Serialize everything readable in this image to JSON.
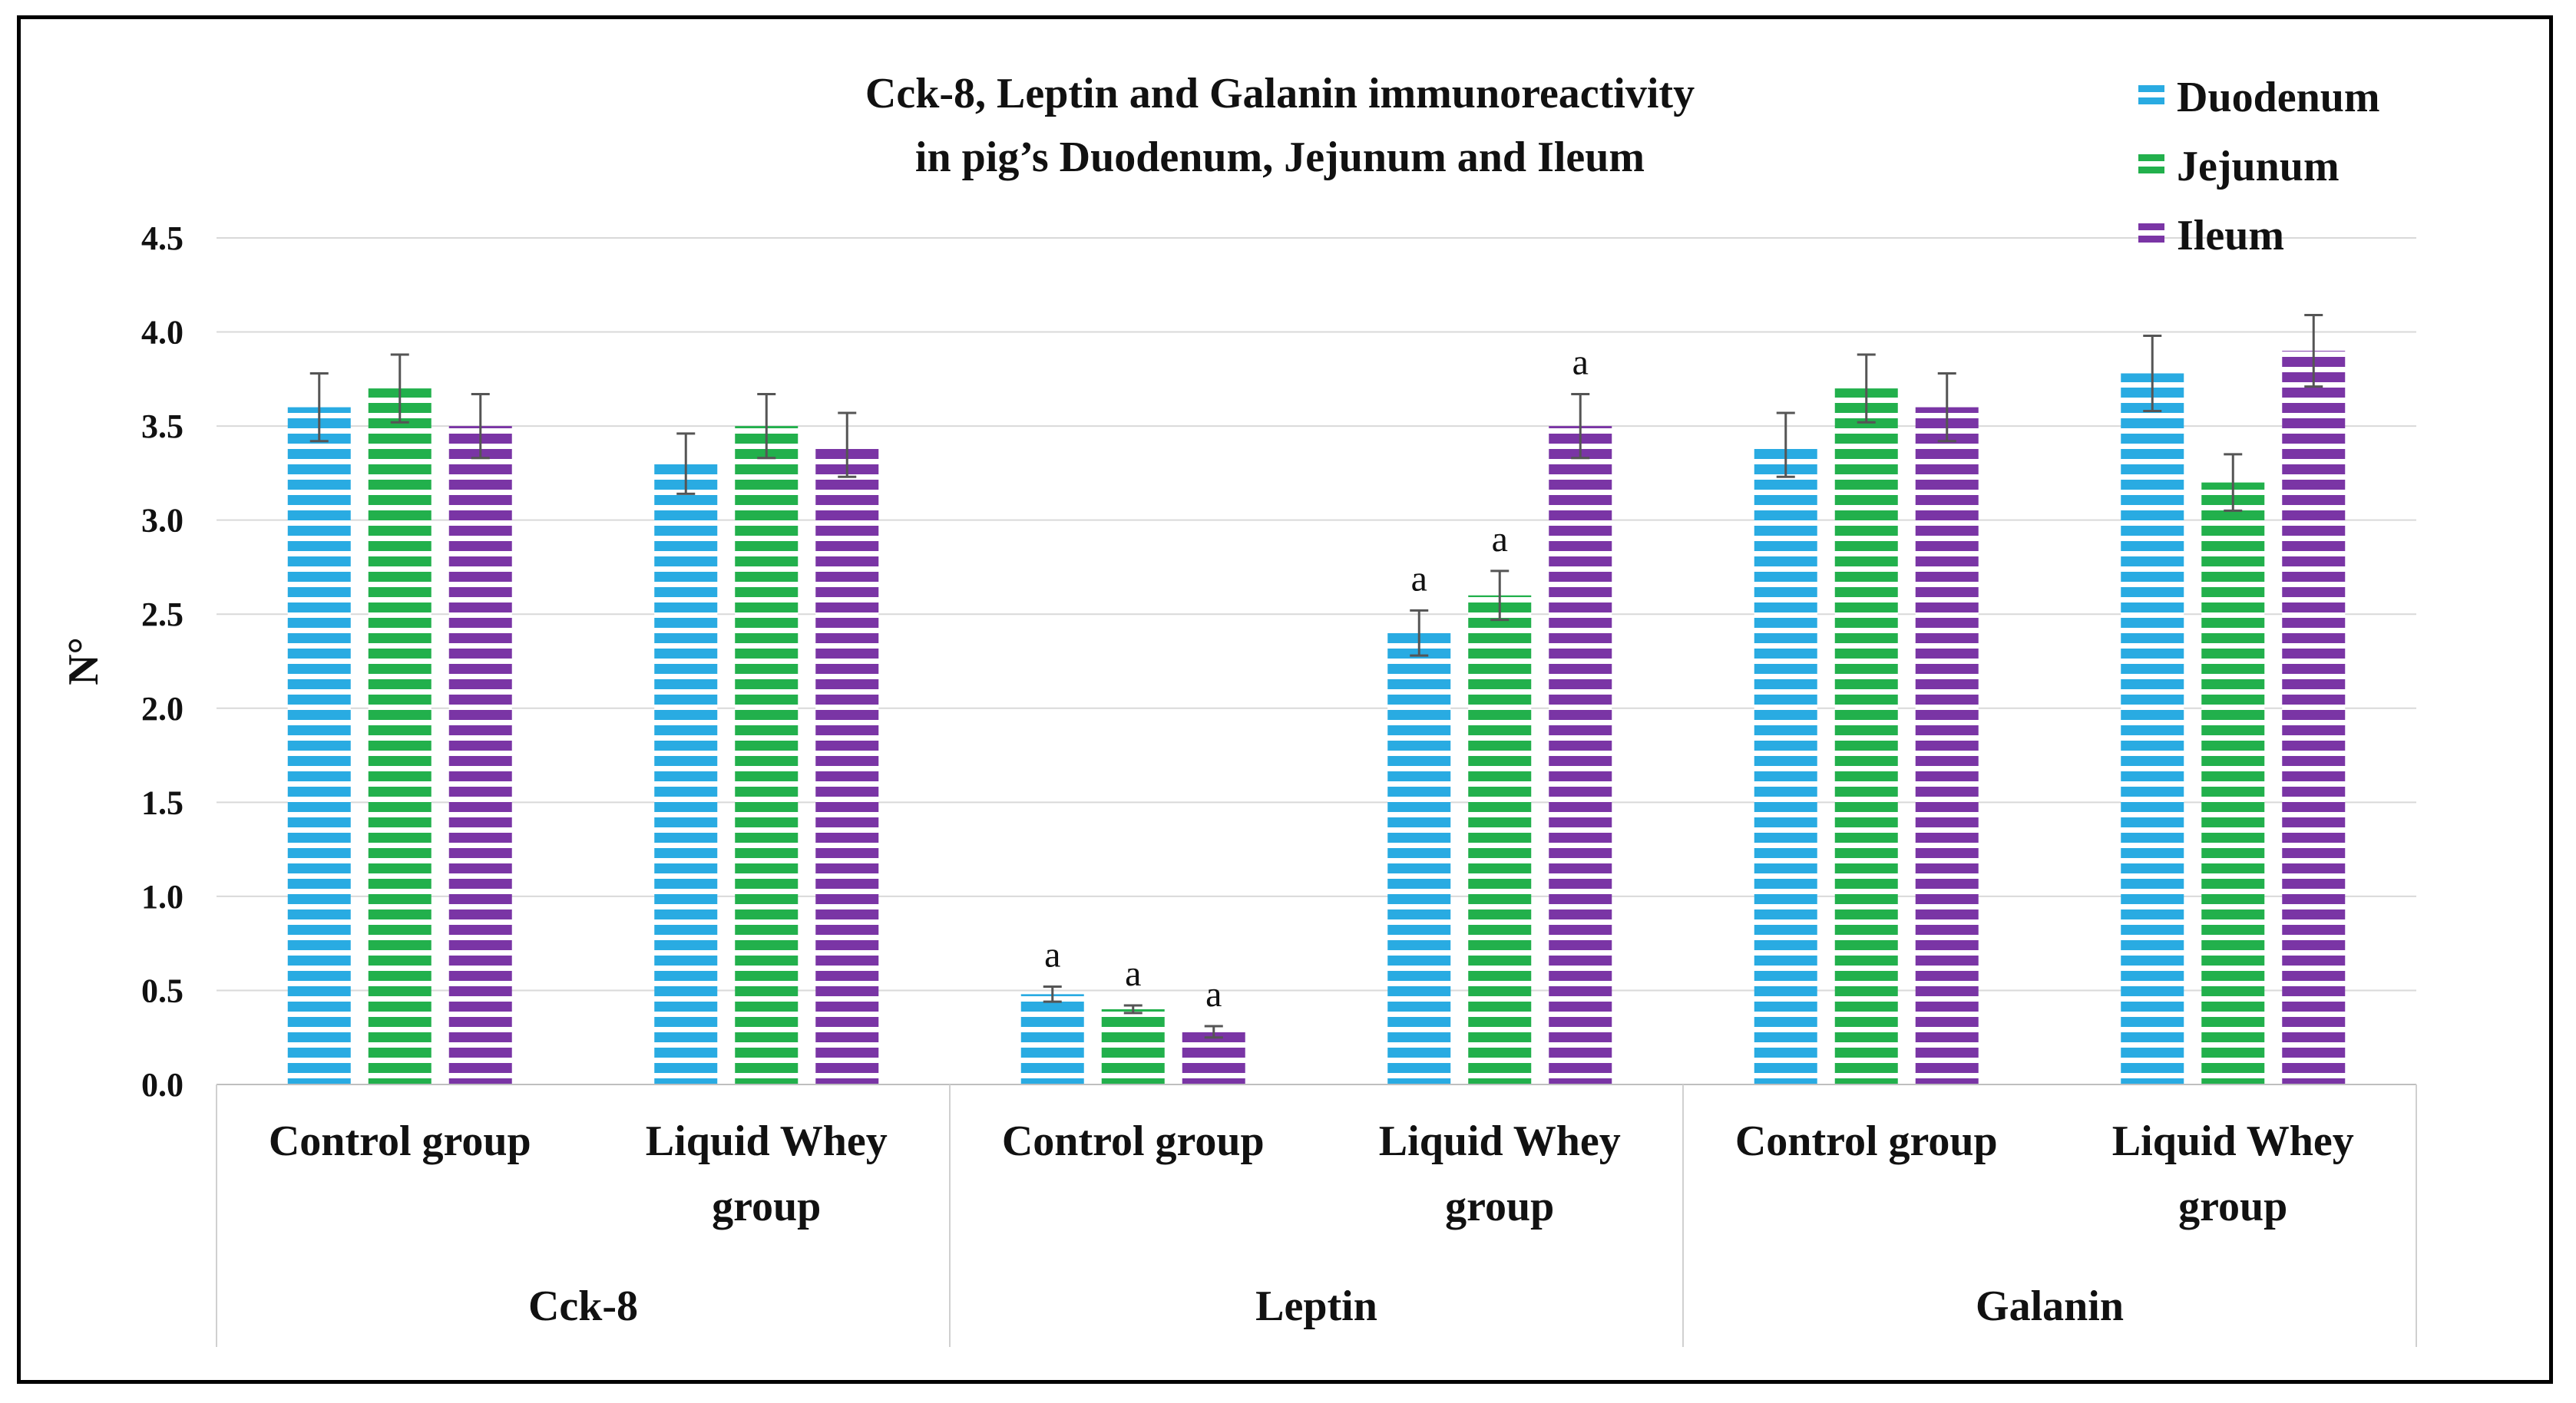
{
  "chart_data": {
    "type": "bar",
    "title_lines": [
      "Cck-8, Leptin and Galanin immunoreactivity",
      "in pig’s Duodenum, Jejunum and Ileum"
    ],
    "ylabel": "N°",
    "xlabel": "",
    "ylim": [
      0,
      4.5
    ],
    "yticks": [
      "0.0",
      "0.5",
      "1.0",
      "1.5",
      "2.0",
      "2.5",
      "3.0",
      "3.5",
      "4.0",
      "4.5"
    ],
    "grid": true,
    "legend_position": "top-right",
    "groups": [
      {
        "name": "Cck-8",
        "categories": [
          {
            "label_lines": [
              "Control group"
            ]
          },
          {
            "label_lines": [
              "Liquid Whey",
              "group"
            ]
          }
        ]
      },
      {
        "name": "Leptin",
        "categories": [
          {
            "label_lines": [
              "Control group"
            ]
          },
          {
            "label_lines": [
              "Liquid Whey",
              "group"
            ]
          }
        ]
      },
      {
        "name": "Galanin",
        "categories": [
          {
            "label_lines": [
              "Control group"
            ]
          },
          {
            "label_lines": [
              "Liquid Whey",
              "group"
            ]
          }
        ]
      }
    ],
    "series": [
      {
        "name": "Duodenum",
        "color": "#29abe2",
        "values": [
          3.6,
          3.3,
          0.48,
          2.4,
          3.4,
          3.78
        ],
        "errors": [
          0.18,
          0.16,
          0.04,
          0.12,
          0.17,
          0.2
        ],
        "annotations": [
          "",
          "",
          "a",
          "a",
          "",
          ""
        ]
      },
      {
        "name": "Jejunum",
        "color": "#22b04c",
        "values": [
          3.7,
          3.5,
          0.4,
          2.6,
          3.7,
          3.2
        ],
        "errors": [
          0.18,
          0.17,
          0.02,
          0.13,
          0.18,
          0.15
        ],
        "annotations": [
          "",
          "",
          "a",
          "a",
          "",
          ""
        ]
      },
      {
        "name": "Ileum",
        "color": "#7a35a5",
        "values": [
          3.5,
          3.4,
          0.28,
          3.5,
          3.6,
          3.9
        ],
        "errors": [
          0.17,
          0.17,
          0.03,
          0.17,
          0.18,
          0.19
        ],
        "annotations": [
          "",
          "",
          "a",
          "a",
          "",
          ""
        ]
      }
    ]
  }
}
